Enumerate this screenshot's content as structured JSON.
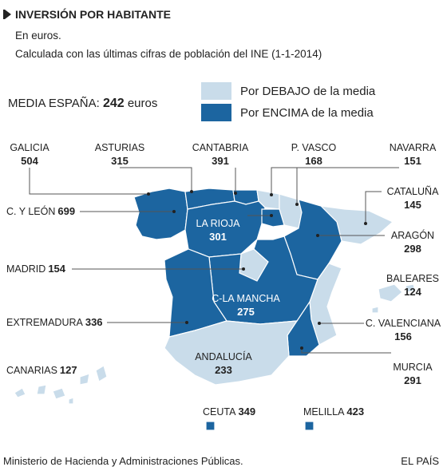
{
  "header": {
    "title": "INVERSIÓN POR HABITANTE",
    "subtitle": "En euros.",
    "note": "Calculada con las últimas cifras de población del INE (1-1-2014)"
  },
  "average": {
    "label": "MEDIA ESPAÑA:",
    "value": 242,
    "unit": "euros"
  },
  "legend": [
    {
      "label": "Por DEBAJO de la media",
      "color": "#c9dcea"
    },
    {
      "label": "Por ENCIMA de la media",
      "color": "#1c65a0"
    }
  ],
  "regions": [
    {
      "name": "GALICIA",
      "value": 504
    },
    {
      "name": "ASTURIAS",
      "value": 315
    },
    {
      "name": "CANTABRIA",
      "value": 391
    },
    {
      "name": "P. VASCO",
      "value": 168
    },
    {
      "name": "NAVARRA",
      "value": 151
    },
    {
      "name": "CATALUÑA",
      "value": 145
    },
    {
      "name": "ARAGÓN",
      "value": 298
    },
    {
      "name": "BALEARES",
      "value": 124
    },
    {
      "name": "C. VALENCIANA",
      "value": 156
    },
    {
      "name": "MURCIA",
      "value": 291
    },
    {
      "name": "C. Y LEÓN",
      "value": 699
    },
    {
      "name": "LA RIOJA",
      "value": 301
    },
    {
      "name": "MADRID",
      "value": 154
    },
    {
      "name": "C-LA MANCHA",
      "value": 275
    },
    {
      "name": "EXTREMADURA",
      "value": 336
    },
    {
      "name": "ANDALUCÍA",
      "value": 233
    },
    {
      "name": "CANARIAS",
      "value": 127
    },
    {
      "name": "CEUTA",
      "value": 349
    },
    {
      "name": "MELILLA",
      "value": 423
    }
  ],
  "footer": {
    "source": "Ministerio de Hacienda y Administraciones Públicas.",
    "credit": "EL PAÍS"
  }
}
